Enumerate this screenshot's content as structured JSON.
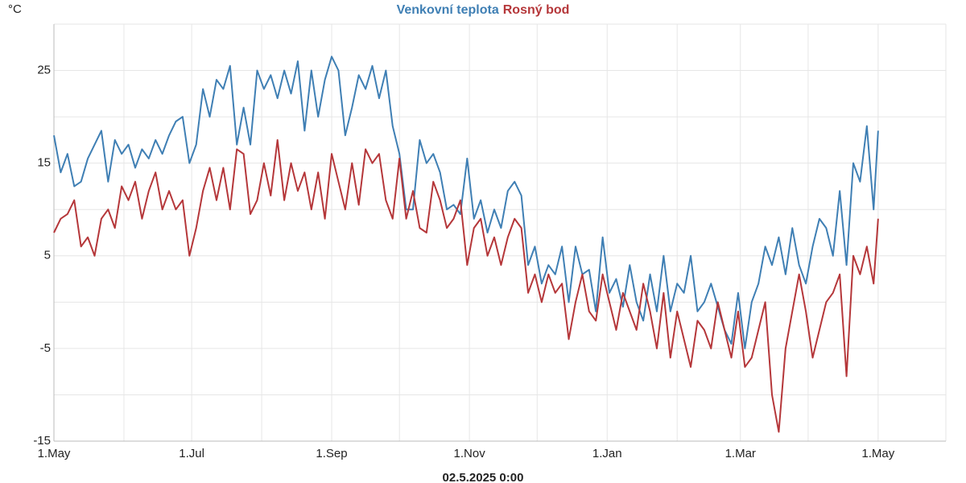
{
  "chart_data": {
    "type": "line",
    "y_unit": "°C",
    "x_label": "02.5.2025 0:00",
    "x": [
      0,
      3,
      6,
      9,
      12,
      15,
      18,
      21,
      24,
      27,
      30,
      33,
      36,
      39,
      42,
      45,
      48,
      51,
      54,
      57,
      60,
      63,
      66,
      69,
      72,
      75,
      78,
      81,
      84,
      87,
      90,
      93,
      96,
      99,
      102,
      105,
      108,
      111,
      114,
      117,
      120,
      123,
      126,
      129,
      132,
      135,
      138,
      141,
      144,
      147,
      150,
      153,
      156,
      159,
      162,
      165,
      168,
      171,
      174,
      177,
      180,
      183,
      186,
      189,
      192,
      195,
      198,
      201,
      204,
      207,
      210,
      213,
      216,
      219,
      222,
      225,
      228,
      231,
      234,
      237,
      240,
      243,
      246,
      249,
      252,
      255,
      258,
      261,
      264,
      267,
      270,
      273,
      276,
      279,
      282,
      285,
      288,
      291,
      294,
      297,
      300,
      303,
      306,
      309,
      312,
      315,
      318,
      321,
      324,
      327,
      330,
      333,
      336,
      339,
      342,
      345,
      348,
      351,
      354,
      357,
      360,
      363,
      365
    ],
    "series": [
      {
        "name": "Venkovní teplota",
        "color": "#3f7fb4",
        "values": [
          18,
          14,
          16,
          12.5,
          13,
          15.5,
          17,
          18.5,
          13,
          17.5,
          16,
          17,
          14.5,
          16.5,
          15.5,
          17.5,
          16,
          18,
          19.5,
          20,
          15,
          17,
          23,
          20,
          24,
          23,
          25.5,
          17,
          21,
          17,
          25,
          23,
          24.5,
          22,
          25,
          22.5,
          26,
          18.5,
          25,
          20,
          24,
          26.5,
          25,
          18,
          21,
          24.5,
          23,
          25.5,
          22,
          25,
          19,
          16,
          10,
          10,
          17.5,
          15,
          16,
          14,
          10,
          10.5,
          9.5,
          15.5,
          9,
          11,
          7.5,
          10,
          8,
          12,
          13,
          11.5,
          4,
          6,
          2,
          4,
          3,
          6,
          0,
          6,
          3,
          3.5,
          -1,
          7,
          1,
          2.5,
          -0.5,
          4,
          0,
          -2,
          3,
          -1,
          5,
          -1,
          2,
          1,
          5,
          -1,
          0,
          2,
          -0.5,
          -3,
          -4.5,
          1,
          -5,
          0,
          2,
          6,
          4,
          7,
          3,
          8,
          4,
          2,
          6,
          9,
          8,
          5,
          12,
          4,
          15,
          13,
          19,
          10,
          18.5
        ]
      },
      {
        "name": "Rosný bod",
        "color": "#b5373a",
        "values": [
          7.5,
          9,
          9.5,
          11,
          6,
          7,
          5,
          9,
          10,
          8,
          12.5,
          11,
          13,
          9,
          12,
          14,
          10,
          12,
          10,
          11,
          5,
          8,
          12,
          14.5,
          11,
          14.5,
          10,
          16.5,
          16,
          9.5,
          11,
          15,
          11.5,
          17.5,
          11,
          15,
          12,
          14,
          10,
          14,
          9,
          16,
          13,
          10,
          15,
          10.5,
          16.5,
          15,
          16,
          11,
          9,
          15.5,
          9,
          12,
          8,
          7.5,
          13,
          11,
          8,
          9,
          11,
          4,
          8,
          9,
          5,
          7,
          4,
          7,
          9,
          8,
          1,
          3,
          0,
          3,
          1,
          2,
          -4,
          0,
          3,
          -1,
          -2,
          3,
          0,
          -3,
          1,
          -1,
          -3,
          2,
          -1,
          -5,
          1,
          -6,
          -1,
          -4,
          -7,
          -2,
          -3,
          -5,
          0,
          -3,
          -6,
          -1,
          -7,
          -6,
          -3,
          0,
          -10,
          -14,
          -5,
          -1,
          3,
          -1,
          -6,
          -3,
          0,
          1,
          3,
          -8,
          5,
          3,
          6,
          2,
          9
        ]
      }
    ],
    "xlim": [
      0,
      395
    ],
    "xticks": [
      {
        "value": 0,
        "label": "1.May"
      },
      {
        "value": 61,
        "label": "1.Jul"
      },
      {
        "value": 123,
        "label": "1.Sep"
      },
      {
        "value": 184,
        "label": "1.Nov"
      },
      {
        "value": 245,
        "label": "1.Jan"
      },
      {
        "value": 304,
        "label": "1.Mar"
      },
      {
        "value": 365,
        "label": "1.May"
      }
    ],
    "minor_xticks": [
      31,
      92,
      153,
      214,
      276,
      334,
      395
    ],
    "ylim": [
      -15,
      30
    ],
    "yticks": [
      -15,
      -5,
      5,
      15,
      25
    ],
    "minor_yticks": [
      -10,
      0,
      10,
      20,
      30
    ],
    "grid": true
  }
}
